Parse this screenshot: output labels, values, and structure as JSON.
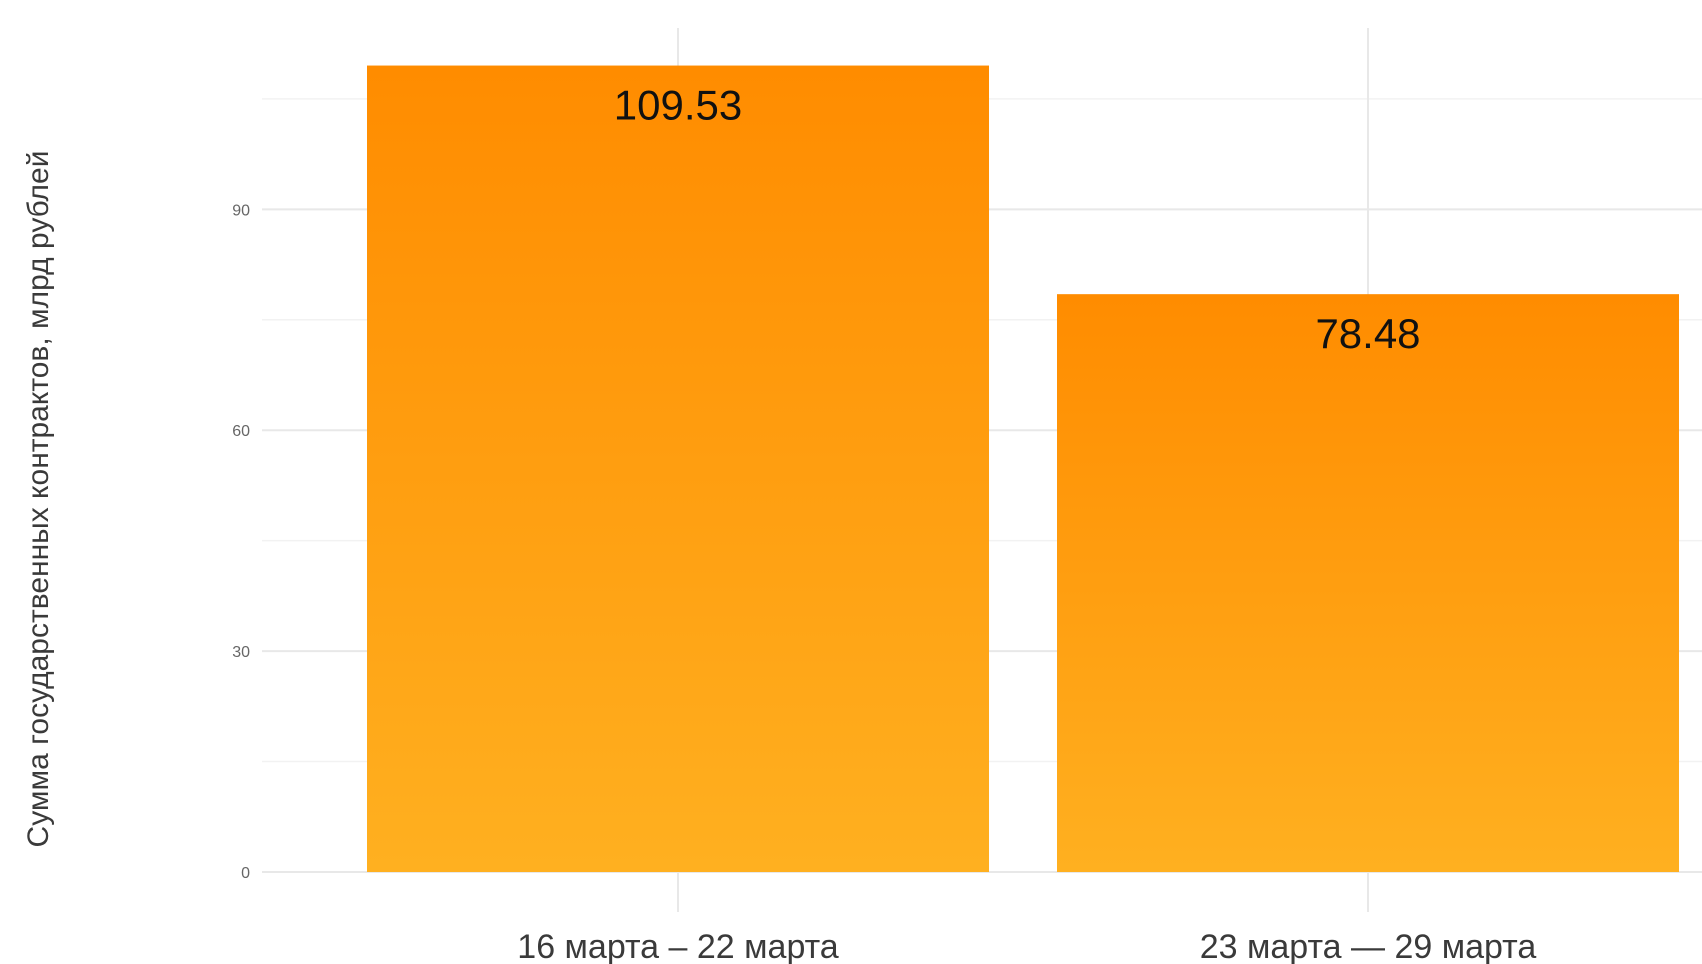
{
  "chart_data": {
    "type": "bar",
    "title": "",
    "xlabel": "",
    "ylabel": "Сумма государственных контрактов, млрд рублей",
    "categories": [
      "16 марта – 22 марта",
      "23 марта — 29 марта"
    ],
    "values": [
      109.53,
      78.48
    ],
    "data_labels": [
      "109.53",
      "78.48"
    ],
    "ylim": [
      0,
      113
    ],
    "yticks": [
      0,
      30,
      60,
      90
    ],
    "grid": true,
    "legend": "none",
    "bar_color_top": "#ff8c00",
    "bar_color_bottom": "#ffb020"
  }
}
